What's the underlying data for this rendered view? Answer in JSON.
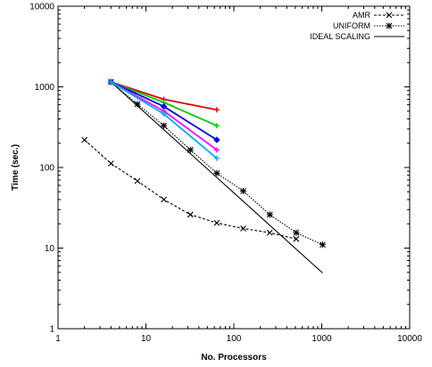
{
  "chart_data": {
    "type": "line",
    "title": "",
    "xlabel": "No. Processors",
    "ylabel": "Time (sec.)",
    "xscale": "log",
    "yscale": "log",
    "xlim": [
      1,
      10000
    ],
    "ylim": [
      1,
      10000
    ],
    "x_ticks": [
      "1",
      "10",
      "100",
      "1000",
      "10000"
    ],
    "y_ticks": [
      "1",
      "10",
      "100",
      "1000",
      "10000"
    ],
    "grid": false,
    "legend_position": "top-right",
    "legend": [
      {
        "label": "AMR",
        "style": "dashed",
        "marker": "x"
      },
      {
        "label": "UNIFORM",
        "style": "dotted",
        "marker": "star"
      },
      {
        "label": "IDEAL SCALING",
        "style": "solid",
        "marker": "none"
      }
    ],
    "series": [
      {
        "name": "AMR",
        "style": "dashed",
        "marker": "x",
        "color": "#000000",
        "x": [
          2,
          4,
          8,
          16,
          32,
          64,
          128,
          256,
          512
        ],
        "y": [
          220,
          112,
          68,
          40,
          26,
          20.5,
          17.5,
          15.5,
          13
        ]
      },
      {
        "name": "UNIFORM",
        "style": "dotted",
        "marker": "star",
        "color": "#000000",
        "x": [
          4,
          8,
          16,
          32,
          64,
          128,
          256,
          512,
          1024
        ],
        "y": [
          1150,
          610,
          330,
          165,
          85,
          51,
          26,
          15.5,
          11
        ]
      },
      {
        "name": "IDEAL SCALING",
        "style": "solid",
        "marker": "none",
        "color": "#000000",
        "x": [
          4,
          1024
        ],
        "y": [
          1150,
          4.9
        ]
      },
      {
        "style": "solid",
        "marker": "plus",
        "color": "#e00000",
        "x": [
          4,
          16,
          64
        ],
        "y": [
          1150,
          700,
          520
        ]
      },
      {
        "style": "solid",
        "marker": "plus",
        "color": "#00cc00",
        "x": [
          4,
          16,
          64
        ],
        "y": [
          1150,
          640,
          330
        ]
      },
      {
        "style": "solid",
        "marker": "diamond",
        "color": "#0000dd",
        "x": [
          4,
          16,
          64
        ],
        "y": [
          1150,
          570,
          220
        ]
      },
      {
        "style": "solid",
        "marker": "plus",
        "color": "#ff00ff",
        "x": [
          4,
          16,
          64
        ],
        "y": [
          1150,
          500,
          165
        ]
      },
      {
        "style": "solid",
        "marker": "plus",
        "color": "#00aaff",
        "x": [
          4,
          16,
          64
        ],
        "y": [
          1150,
          460,
          130
        ]
      }
    ]
  }
}
